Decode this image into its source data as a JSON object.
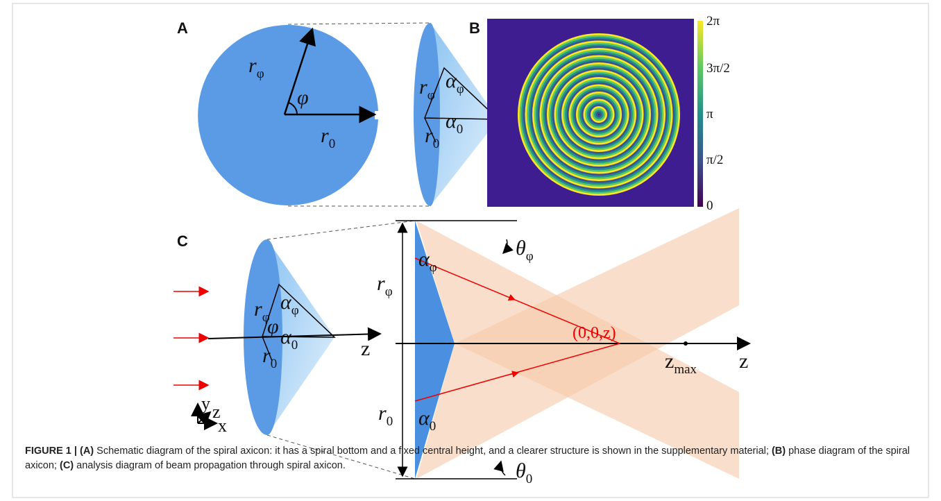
{
  "panels": {
    "a": "A",
    "b": "B",
    "c": "C"
  },
  "panel_a": {
    "circle_r_phi": {
      "main": "r",
      "sub": "φ"
    },
    "circle_phi": "φ",
    "circle_r_0": {
      "main": "r",
      "sub": "0"
    },
    "cone_r_phi": {
      "main": "r",
      "sub": "φ"
    },
    "cone_alpha_phi": {
      "main": "α",
      "sub": "φ"
    },
    "cone_alpha_0": {
      "main": "α",
      "sub": "0"
    },
    "cone_r_0": {
      "main": "r",
      "sub": "0"
    }
  },
  "panel_b": {
    "colorbar_labels": [
      "2π",
      "3π/2",
      "π",
      "π/2",
      "0"
    ]
  },
  "panel_c": {
    "cone_r_phi": {
      "main": "r",
      "sub": "φ"
    },
    "cone_alpha_phi": {
      "main": "α",
      "sub": "φ"
    },
    "cone_phi": "φ",
    "cone_alpha_0": {
      "main": "α",
      "sub": "0"
    },
    "cone_r_0": {
      "main": "r",
      "sub": "0"
    },
    "cone_axis": "z",
    "axes": {
      "y": "y",
      "z": "z",
      "x": "x"
    },
    "r_phi": {
      "main": "r",
      "sub": "φ"
    },
    "alpha_phi": {
      "main": "α",
      "sub": "φ"
    },
    "theta_phi": {
      "main": "θ",
      "sub": "φ"
    },
    "focus": "(0,0,z)",
    "z_max": {
      "main": "z",
      "sub": "max"
    },
    "axis_z": "z",
    "r_0": {
      "main": "r",
      "sub": "0"
    },
    "alpha_0": {
      "main": "α",
      "sub": "0"
    },
    "theta_0": {
      "main": "θ",
      "sub": "0"
    }
  },
  "caption": [
    {
      "text": "FIGURE 1 | (A)",
      "bold": true
    },
    {
      "text": " Schematic diagram of the spiral axicon: it has a spiral bottom and a fixed central height, and a clearer structure is shown in the supplementary material; ",
      "bold": false
    },
    {
      "text": "(B)",
      "bold": true
    },
    {
      "text": " phase diagram of the spiral axicon; ",
      "bold": false
    },
    {
      "text": "(C)",
      "bold": true
    },
    {
      "text": " analysis diagram of beam propagation through spiral axicon.",
      "bold": false
    }
  ]
}
